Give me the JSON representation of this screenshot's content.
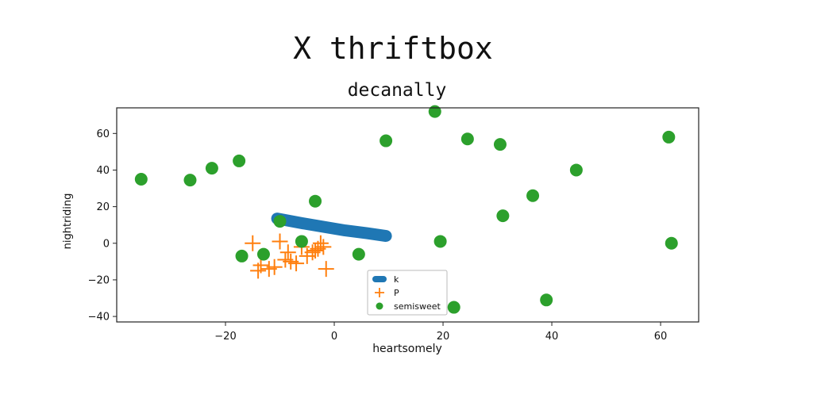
{
  "figure": {
    "suptitle": "X thriftbox"
  },
  "chart_data": {
    "type": "scatter",
    "title": "decanally",
    "xlabel": "heartsomely",
    "ylabel": "nightriding",
    "xlim": [
      -40,
      67
    ],
    "ylim": [
      -43,
      74
    ],
    "xticks": [
      -20,
      0,
      20,
      40,
      60
    ],
    "yticks": [
      -40,
      -20,
      0,
      20,
      40,
      60
    ],
    "grid": false,
    "legend_position": "lower-center",
    "series": [
      {
        "name": "k",
        "marker": "line",
        "color": "#1f77b4",
        "x": [
          -10.5,
          -6,
          -2,
          2,
          6,
          9.5
        ],
        "y": [
          13.5,
          11,
          9,
          7,
          5.5,
          4
        ]
      },
      {
        "name": "P",
        "marker": "plus",
        "color": "#ff7f0e",
        "x": [
          -15,
          -14,
          -13.5,
          -12,
          -11,
          -10,
          -9,
          -8.5,
          -8,
          -7,
          -6,
          -5,
          -4,
          -3.5,
          -3,
          -2.5,
          -2,
          -1.5
        ],
        "y": [
          0,
          -15,
          -12,
          -14,
          -13,
          1,
          -9,
          -5,
          -10,
          -11,
          -2,
          -7,
          -5,
          -4,
          -3,
          0,
          -2,
          -14
        ]
      },
      {
        "name": "semisweet",
        "marker": "circle",
        "color": "#2ca02c",
        "x": [
          -35.5,
          -26.5,
          -22.5,
          -17.5,
          -17,
          -13,
          -10,
          -6,
          -3.5,
          4.5,
          9.5,
          18.5,
          19.5,
          22,
          24.5,
          30.5,
          31,
          36.5,
          39,
          44.5,
          61.5,
          62
        ],
        "y": [
          35,
          34.5,
          41,
          45,
          -7,
          -6,
          12,
          1,
          23,
          -6,
          56,
          72,
          1,
          -35,
          57,
          54,
          15,
          26,
          -31,
          40,
          58,
          0
        ]
      }
    ]
  }
}
